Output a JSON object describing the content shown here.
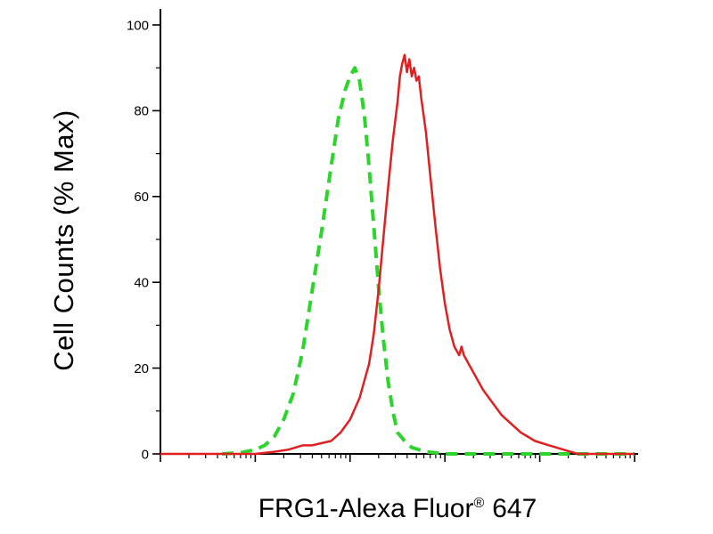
{
  "figure": {
    "background": "#ffffff",
    "axis_color": "#000000"
  },
  "chart_data": {
    "type": "line",
    "title": "",
    "subtitle": "",
    "ylabel": "Cell Counts (% Max)",
    "xlabel": "FRG1-Alexa Fluor® 647",
    "xlabel_main": "FRG1-Alexa Fluor",
    "xlabel_sup": "®",
    "xlabel_suffix": "647",
    "grid": false,
    "legend": "none",
    "y_axis": {
      "range": [
        0,
        100
      ],
      "major_ticks": [
        0,
        20,
        40,
        60,
        80,
        100
      ],
      "minor_ticks": [
        10,
        30,
        50,
        70,
        90
      ]
    },
    "x_axis": {
      "scale": "log",
      "decades": 5,
      "major_ticks": [
        0,
        0.2,
        0.4,
        0.6,
        0.8,
        1.0
      ],
      "minor_ticks": [
        0.0602,
        0.0954,
        0.1204,
        0.1398,
        0.1556,
        0.169,
        0.1806,
        0.1908,
        0.2602,
        0.2954,
        0.3204,
        0.3398,
        0.3556,
        0.369,
        0.3806,
        0.3908,
        0.4602,
        0.4954,
        0.5204,
        0.5398,
        0.5556,
        0.569,
        0.5806,
        0.5908,
        0.6602,
        0.6954,
        0.7204,
        0.7398,
        0.7556,
        0.769,
        0.7806,
        0.7908,
        0.8602,
        0.8954,
        0.9204,
        0.9398,
        0.9556,
        0.969,
        0.9806,
        0.9908
      ]
    },
    "series": [
      {
        "name": "control-green-dashed",
        "color": "#2ed42e",
        "line_style": "dashed",
        "dash": [
          13,
          8
        ],
        "width": 4,
        "points": [
          [
            0.13,
            0
          ],
          [
            0.17,
            0.3
          ],
          [
            0.2,
            1
          ],
          [
            0.22,
            2
          ],
          [
            0.24,
            4
          ],
          [
            0.26,
            8
          ],
          [
            0.28,
            14
          ],
          [
            0.3,
            24
          ],
          [
            0.32,
            38
          ],
          [
            0.34,
            52
          ],
          [
            0.36,
            67
          ],
          [
            0.375,
            78
          ],
          [
            0.39,
            85
          ],
          [
            0.4,
            88
          ],
          [
            0.41,
            90
          ],
          [
            0.42,
            87
          ],
          [
            0.43,
            79
          ],
          [
            0.44,
            67
          ],
          [
            0.45,
            53
          ],
          [
            0.46,
            39
          ],
          [
            0.47,
            27
          ],
          [
            0.48,
            17
          ],
          [
            0.49,
            10
          ],
          [
            0.5,
            5
          ],
          [
            0.515,
            3
          ],
          [
            0.53,
            1.5
          ],
          [
            0.56,
            0.5
          ],
          [
            0.6,
            0
          ],
          [
            1.0,
            0
          ]
        ]
      },
      {
        "name": "frg1-red-solid",
        "color": "#e02020",
        "line_style": "solid",
        "dash": null,
        "width": 2.5,
        "points": [
          [
            0.0,
            0
          ],
          [
            0.2,
            0
          ],
          [
            0.24,
            0.5
          ],
          [
            0.27,
            1
          ],
          [
            0.3,
            2
          ],
          [
            0.32,
            2
          ],
          [
            0.34,
            2.5
          ],
          [
            0.36,
            3
          ],
          [
            0.38,
            5
          ],
          [
            0.4,
            8
          ],
          [
            0.42,
            13
          ],
          [
            0.44,
            21
          ],
          [
            0.45,
            28
          ],
          [
            0.46,
            38
          ],
          [
            0.47,
            50
          ],
          [
            0.48,
            62
          ],
          [
            0.49,
            73
          ],
          [
            0.5,
            82
          ],
          [
            0.505,
            88
          ],
          [
            0.51,
            91
          ],
          [
            0.515,
            93
          ],
          [
            0.52,
            89
          ],
          [
            0.525,
            92
          ],
          [
            0.53,
            88
          ],
          [
            0.535,
            90
          ],
          [
            0.54,
            87
          ],
          [
            0.545,
            88
          ],
          [
            0.55,
            83
          ],
          [
            0.56,
            75
          ],
          [
            0.57,
            64
          ],
          [
            0.58,
            53
          ],
          [
            0.59,
            43
          ],
          [
            0.6,
            35
          ],
          [
            0.61,
            29
          ],
          [
            0.62,
            25
          ],
          [
            0.63,
            23
          ],
          [
            0.635,
            25
          ],
          [
            0.64,
            23
          ],
          [
            0.65,
            21
          ],
          [
            0.66,
            19
          ],
          [
            0.68,
            15
          ],
          [
            0.7,
            12
          ],
          [
            0.72,
            9
          ],
          [
            0.74,
            7
          ],
          [
            0.76,
            5
          ],
          [
            0.79,
            3
          ],
          [
            0.82,
            2
          ],
          [
            0.85,
            1
          ],
          [
            0.88,
            0
          ],
          [
            1.0,
            0
          ]
        ]
      }
    ]
  }
}
